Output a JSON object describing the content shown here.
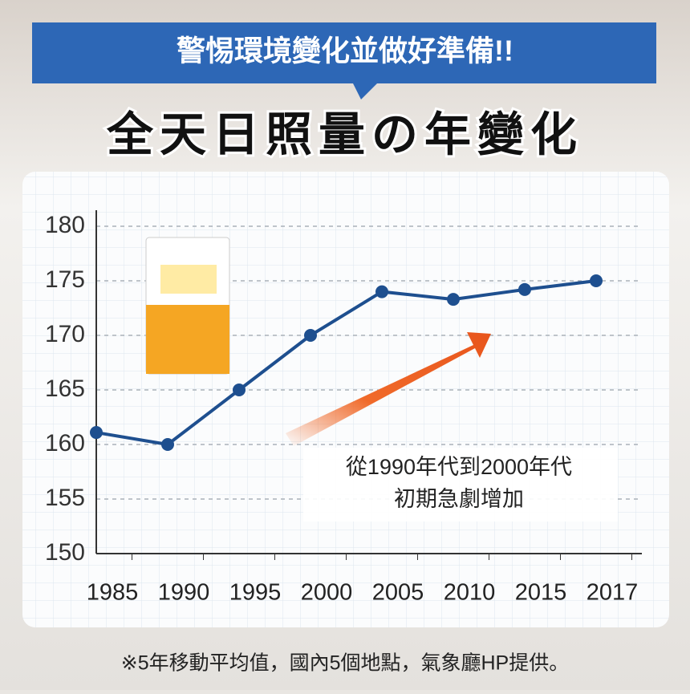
{
  "chart_data": {
    "type": "line",
    "banner": "警惕環境變化並做好準備!!",
    "title": "全天日照量の年變化",
    "categories": [
      "1985",
      "1990",
      "1995",
      "2000",
      "2005",
      "2010",
      "2015",
      "2017"
    ],
    "series": [
      {
        "color": "#1e4f8f",
        "values": [
          161.1,
          160,
          165,
          170,
          174,
          173.3,
          174.2,
          175
        ]
      }
    ],
    "ylim": [
      150,
      180
    ],
    "yticks": [
      150,
      155,
      160,
      165,
      170,
      175,
      180
    ],
    "grid": true,
    "annotations": [
      "從1990年代到2000年代",
      "初期急劇增加"
    ],
    "footnote": "※5年移動平均值，國內5個地點，氣象廳HP提供。"
  }
}
